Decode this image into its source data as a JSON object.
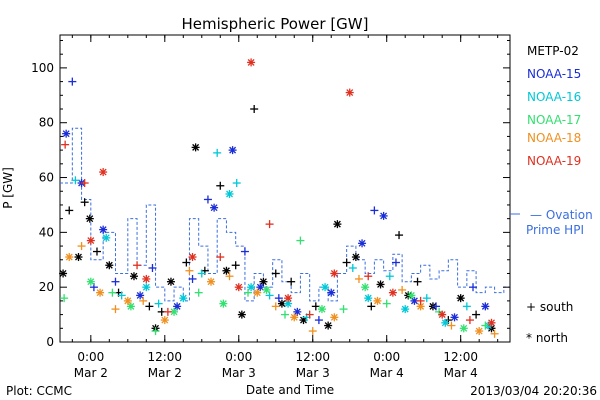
{
  "chart_data": {
    "type": "scatter",
    "title": "Hemispheric Power [GW]",
    "ylabel": "P [GW]",
    "xlabel": "Date and Time",
    "ylim": [
      0,
      112
    ],
    "xlim": [
      "2013-03-01T19:00",
      "2013-03-04T20:00"
    ],
    "y_ticks": [
      0,
      20,
      40,
      60,
      80,
      100
    ],
    "x_ticks": [
      {
        "t": "2013-03-02T00:00",
        "label1": "0:00",
        "label2": "Mar 2"
      },
      {
        "t": "2013-03-02T12:00",
        "label1": "12:00",
        "label2": "Mar 2"
      },
      {
        "t": "2013-03-03T00:00",
        "label1": "0:00",
        "label2": "Mar 3"
      },
      {
        "t": "2013-03-03T12:00",
        "label1": "12:00",
        "label2": "Mar 3"
      },
      {
        "t": "2013-03-04T00:00",
        "label1": "0:00",
        "label2": "Mar 4"
      },
      {
        "t": "2013-03-04T12:00",
        "label1": "12:00",
        "label2": "Mar 4"
      }
    ],
    "grid": false,
    "legend_placement": "right",
    "series": [
      {
        "name": "METP-02",
        "color": "#000000",
        "points": [
          [
            "2013-03-01T19:30",
            25,
            "*"
          ],
          [
            "2013-03-01T20:30",
            48,
            "+"
          ],
          [
            "2013-03-01T22:00",
            31,
            "*"
          ],
          [
            "2013-03-01T23:00",
            51,
            "+"
          ],
          [
            "2013-03-01T23:50",
            45,
            "*"
          ],
          [
            "2013-03-02T01:00",
            33,
            "+"
          ],
          [
            "2013-03-02T03:00",
            28,
            "*"
          ],
          [
            "2013-03-02T04:30",
            18,
            "+"
          ],
          [
            "2013-03-02T07:00",
            24,
            "*"
          ],
          [
            "2013-03-02T09:30",
            13,
            "+"
          ],
          [
            "2013-03-02T10:30",
            5,
            "*"
          ],
          [
            "2013-03-02T11:30",
            11,
            "+"
          ],
          [
            "2013-03-02T13:00",
            22,
            "*"
          ],
          [
            "2013-03-02T15:30",
            29,
            "+"
          ],
          [
            "2013-03-02T17:00",
            71,
            "*"
          ],
          [
            "2013-03-02T18:30",
            26,
            "+"
          ],
          [
            "2013-03-02T21:00",
            57,
            "+"
          ],
          [
            "2013-03-02T22:00",
            26,
            "*"
          ],
          [
            "2013-03-02T23:30",
            28,
            "+"
          ],
          [
            "2013-03-03T00:30",
            10,
            "*"
          ],
          [
            "2013-03-03T02:30",
            85,
            "+"
          ],
          [
            "2013-03-03T04:00",
            22,
            "*"
          ],
          [
            "2013-03-03T06:00",
            25,
            "+"
          ],
          [
            "2013-03-03T07:00",
            14,
            "*"
          ],
          [
            "2013-03-03T08:30",
            22,
            "+"
          ],
          [
            "2013-03-03T10:30",
            8,
            "*"
          ],
          [
            "2013-03-03T12:30",
            13,
            "+"
          ],
          [
            "2013-03-03T14:30",
            6,
            "*"
          ],
          [
            "2013-03-03T16:00",
            43,
            "*"
          ],
          [
            "2013-03-03T17:30",
            29,
            "+"
          ],
          [
            "2013-03-03T19:00",
            31,
            "*"
          ],
          [
            "2013-03-03T21:30",
            13,
            "+"
          ],
          [
            "2013-03-03T23:00",
            21,
            "*"
          ],
          [
            "2013-03-04T02:00",
            39,
            "+"
          ],
          [
            "2013-03-04T03:30",
            17,
            "*"
          ],
          [
            "2013-03-04T05:00",
            22,
            "+"
          ],
          [
            "2013-03-04T07:30",
            13,
            "*"
          ],
          [
            "2013-03-04T10:00",
            8,
            "+"
          ],
          [
            "2013-03-04T12:00",
            16,
            "*"
          ],
          [
            "2013-03-04T14:30",
            10,
            "+"
          ],
          [
            "2013-03-04T17:00",
            5,
            "*"
          ]
        ]
      },
      {
        "name": "NOAA-15",
        "color": "#1a2dd8",
        "points": [
          [
            "2013-03-01T20:00",
            76,
            "*"
          ],
          [
            "2013-03-01T21:00",
            95,
            "+"
          ],
          [
            "2013-03-01T22:30",
            58,
            "*"
          ],
          [
            "2013-03-02T00:30",
            20,
            "+"
          ],
          [
            "2013-03-02T02:00",
            41,
            "*"
          ],
          [
            "2013-03-02T04:00",
            22,
            "+"
          ],
          [
            "2013-03-02T08:00",
            17,
            "*"
          ],
          [
            "2013-03-02T10:00",
            27,
            "+"
          ],
          [
            "2013-03-02T14:00",
            13,
            "*"
          ],
          [
            "2013-03-02T16:30",
            23,
            "+"
          ],
          [
            "2013-03-02T19:00",
            52,
            "+"
          ],
          [
            "2013-03-02T20:00",
            49,
            "*"
          ],
          [
            "2013-03-02T23:00",
            70,
            "*"
          ],
          [
            "2013-03-03T01:00",
            33,
            "+"
          ],
          [
            "2013-03-03T03:30",
            20,
            "*"
          ],
          [
            "2013-03-03T06:30",
            16,
            "+"
          ],
          [
            "2013-03-03T09:30",
            11,
            "*"
          ],
          [
            "2013-03-03T13:00",
            8,
            "+"
          ],
          [
            "2013-03-03T15:00",
            18,
            "*"
          ],
          [
            "2013-03-03T20:00",
            36,
            "*"
          ],
          [
            "2013-03-03T22:00",
            48,
            "+"
          ],
          [
            "2013-03-03T23:30",
            46,
            "*"
          ],
          [
            "2013-03-04T01:30",
            29,
            "+"
          ],
          [
            "2013-03-04T04:30",
            15,
            "*"
          ],
          [
            "2013-03-04T08:00",
            13,
            "+"
          ],
          [
            "2013-03-04T11:00",
            9,
            "*"
          ],
          [
            "2013-03-04T14:00",
            20,
            "+"
          ],
          [
            "2013-03-04T16:00",
            13,
            "*"
          ]
        ]
      },
      {
        "name": "NOAA-16",
        "color": "#00c8d8",
        "points": [
          [
            "2013-03-01T21:30",
            59,
            "+"
          ],
          [
            "2013-03-02T02:30",
            38,
            "*"
          ],
          [
            "2013-03-02T05:00",
            17,
            "+"
          ],
          [
            "2013-03-02T09:00",
            20,
            "*"
          ],
          [
            "2013-03-02T11:00",
            14,
            "+"
          ],
          [
            "2013-03-02T15:00",
            16,
            "*"
          ],
          [
            "2013-03-02T18:00",
            25,
            "+"
          ],
          [
            "2013-03-02T20:30",
            69,
            "+"
          ],
          [
            "2013-03-02T22:30",
            54,
            "*"
          ],
          [
            "2013-03-02T23:40",
            58,
            "+"
          ],
          [
            "2013-03-03T02:00",
            20,
            "*"
          ],
          [
            "2013-03-03T05:00",
            17,
            "+"
          ],
          [
            "2013-03-03T08:00",
            14,
            "*"
          ],
          [
            "2013-03-03T11:00",
            9,
            "+"
          ],
          [
            "2013-03-03T14:00",
            20,
            "*"
          ],
          [
            "2013-03-03T18:30",
            27,
            "+"
          ],
          [
            "2013-03-03T21:00",
            16,
            "*"
          ],
          [
            "2013-03-04T00:30",
            24,
            "+"
          ],
          [
            "2013-03-04T03:00",
            12,
            "*"
          ],
          [
            "2013-03-04T06:30",
            16,
            "+"
          ],
          [
            "2013-03-04T09:30",
            7,
            "*"
          ],
          [
            "2013-03-04T13:00",
            13,
            "+"
          ],
          [
            "2013-03-04T16:30",
            6,
            "*"
          ]
        ]
      },
      {
        "name": "NOAA-17",
        "color": "#33e070",
        "points": [
          [
            "2013-03-01T19:40",
            16,
            "+"
          ],
          [
            "2013-03-02T00:00",
            22,
            "*"
          ],
          [
            "2013-03-02T03:30",
            18,
            "+"
          ],
          [
            "2013-03-02T06:30",
            13,
            "*"
          ],
          [
            "2013-03-02T10:30",
            4,
            "+"
          ],
          [
            "2013-03-02T13:30",
            11,
            "*"
          ],
          [
            "2013-03-02T17:30",
            18,
            "+"
          ],
          [
            "2013-03-02T21:30",
            14,
            "*"
          ],
          [
            "2013-03-03T01:30",
            18,
            "+"
          ],
          [
            "2013-03-03T04:30",
            19,
            "*"
          ],
          [
            "2013-03-03T07:30",
            10,
            "+"
          ],
          [
            "2013-03-03T10:00",
            37,
            "+"
          ],
          [
            "2013-03-03T13:30",
            12,
            "*"
          ],
          [
            "2013-03-03T17:00",
            12,
            "+"
          ],
          [
            "2013-03-03T20:30",
            20,
            "*"
          ],
          [
            "2013-03-04T00:00",
            14,
            "+"
          ],
          [
            "2013-03-04T04:00",
            17,
            "*"
          ],
          [
            "2013-03-04T08:30",
            11,
            "+"
          ],
          [
            "2013-03-04T12:30",
            5,
            "*"
          ],
          [
            "2013-03-04T16:00",
            6,
            "+"
          ]
        ]
      },
      {
        "name": "NOAA-18",
        "color": "#f09020",
        "points": [
          [
            "2013-03-01T20:30",
            31,
            "*"
          ],
          [
            "2013-03-01T22:30",
            35,
            "+"
          ],
          [
            "2013-03-02T01:30",
            18,
            "*"
          ],
          [
            "2013-03-02T04:00",
            12,
            "+"
          ],
          [
            "2013-03-02T06:00",
            15,
            "*"
          ],
          [
            "2013-03-02T08:30",
            15,
            "+"
          ],
          [
            "2013-03-02T12:00",
            8,
            "*"
          ],
          [
            "2013-03-02T16:00",
            26,
            "+"
          ],
          [
            "2013-03-02T19:30",
            22,
            "*"
          ],
          [
            "2013-03-02T22:30",
            24,
            "+"
          ],
          [
            "2013-03-03T03:00",
            18,
            "*"
          ],
          [
            "2013-03-03T06:00",
            13,
            "+"
          ],
          [
            "2013-03-03T09:00",
            9,
            "*"
          ],
          [
            "2013-03-03T12:00",
            4,
            "+"
          ],
          [
            "2013-03-03T15:30",
            9,
            "*"
          ],
          [
            "2013-03-03T19:30",
            23,
            "+"
          ],
          [
            "2013-03-03T22:30",
            15,
            "*"
          ],
          [
            "2013-03-04T02:30",
            19,
            "+"
          ],
          [
            "2013-03-04T05:30",
            13,
            "*"
          ],
          [
            "2013-03-04T10:30",
            6,
            "+"
          ],
          [
            "2013-03-04T15:00",
            4,
            "*"
          ],
          [
            "2013-03-04T17:30",
            3,
            "+"
          ]
        ]
      },
      {
        "name": "NOAA-19",
        "color": "#e03020",
        "points": [
          [
            "2013-03-01T19:50",
            72,
            "+"
          ],
          [
            "2013-03-01T23:00",
            58,
            "+"
          ],
          [
            "2013-03-02T00:00",
            37,
            "*"
          ],
          [
            "2013-03-02T02:00",
            62,
            "*"
          ],
          [
            "2013-03-02T07:30",
            28,
            "+"
          ],
          [
            "2013-03-02T09:00",
            23,
            "*"
          ],
          [
            "2013-03-02T12:30",
            11,
            "+"
          ],
          [
            "2013-03-02T16:30",
            31,
            "*"
          ],
          [
            "2013-03-02T21:00",
            31,
            "+"
          ],
          [
            "2013-03-03T00:00",
            20,
            "*"
          ],
          [
            "2013-03-03T02:00",
            102,
            "*"
          ],
          [
            "2013-03-03T05:00",
            43,
            "+"
          ],
          [
            "2013-03-03T08:00",
            16,
            "*"
          ],
          [
            "2013-03-03T11:30",
            10,
            "+"
          ],
          [
            "2013-03-03T15:30",
            25,
            "*"
          ],
          [
            "2013-03-03T18:00",
            91,
            "*"
          ],
          [
            "2013-03-03T21:00",
            24,
            "+"
          ],
          [
            "2013-03-04T01:00",
            18,
            "*"
          ],
          [
            "2013-03-04T05:30",
            15,
            "+"
          ],
          [
            "2013-03-04T09:00",
            10,
            "*"
          ],
          [
            "2013-03-04T13:30",
            8,
            "+"
          ],
          [
            "2013-03-04T17:00",
            7,
            "*"
          ]
        ]
      }
    ],
    "ovation": {
      "name": "Ovation Prime HPI",
      "color": "#3b6fe0",
      "steps": [
        [
          "2013-03-01T19:00",
          58
        ],
        [
          "2013-03-01T21:00",
          78
        ],
        [
          "2013-03-01T22:30",
          52
        ],
        [
          "2013-03-02T00:00",
          30
        ],
        [
          "2013-03-02T02:00",
          40
        ],
        [
          "2013-03-02T04:00",
          25
        ],
        [
          "2013-03-02T06:00",
          45
        ],
        [
          "2013-03-02T07:30",
          28
        ],
        [
          "2013-03-02T09:00",
          50
        ],
        [
          "2013-03-02T10:30",
          20
        ],
        [
          "2013-03-02T12:00",
          15
        ],
        [
          "2013-03-02T13:30",
          20
        ],
        [
          "2013-03-02T15:00",
          15
        ],
        [
          "2013-03-02T16:00",
          45
        ],
        [
          "2013-03-02T17:30",
          35
        ],
        [
          "2013-03-02T19:00",
          25
        ],
        [
          "2013-03-02T20:30",
          45
        ],
        [
          "2013-03-02T22:00",
          40
        ],
        [
          "2013-03-02T23:30",
          35
        ],
        [
          "2013-03-03T01:00",
          15
        ],
        [
          "2013-03-03T02:30",
          25
        ],
        [
          "2013-03-03T04:00",
          20
        ],
        [
          "2013-03-03T05:30",
          30
        ],
        [
          "2013-03-03T07:00",
          22
        ],
        [
          "2013-03-03T08:30",
          18
        ],
        [
          "2013-03-03T10:00",
          25
        ],
        [
          "2013-03-03T11:30",
          15
        ],
        [
          "2013-03-03T13:00",
          20
        ],
        [
          "2013-03-03T14:30",
          15
        ],
        [
          "2013-03-03T16:00",
          25
        ],
        [
          "2013-03-03T17:30",
          35
        ],
        [
          "2013-03-03T19:00",
          30
        ],
        [
          "2013-03-03T20:30",
          25
        ],
        [
          "2013-03-03T22:00",
          30
        ],
        [
          "2013-03-03T23:30",
          26
        ],
        [
          "2013-03-04T01:00",
          32
        ],
        [
          "2013-03-04T02:30",
          22
        ],
        [
          "2013-03-04T04:00",
          25
        ],
        [
          "2013-03-04T05:30",
          28
        ],
        [
          "2013-03-04T07:00",
          23
        ],
        [
          "2013-03-04T08:30",
          26
        ],
        [
          "2013-03-04T10:00",
          30
        ],
        [
          "2013-03-04T11:30",
          20
        ],
        [
          "2013-03-04T13:00",
          26
        ],
        [
          "2013-03-04T14:30",
          18
        ],
        [
          "2013-03-04T16:00",
          20
        ],
        [
          "2013-03-04T17:30",
          18
        ],
        [
          "2013-03-04T19:00",
          20
        ],
        [
          "2013-03-04T20:00",
          20
        ]
      ]
    }
  },
  "legend": {
    "ovation_line1": "— Ovation",
    "ovation_line2": "Prime HPI",
    "south_label": "+ south",
    "north_label": "* north"
  },
  "footer": {
    "plot_credit": "Plot: CCMC",
    "timestamp": "2013/03/04 20:20:36"
  }
}
